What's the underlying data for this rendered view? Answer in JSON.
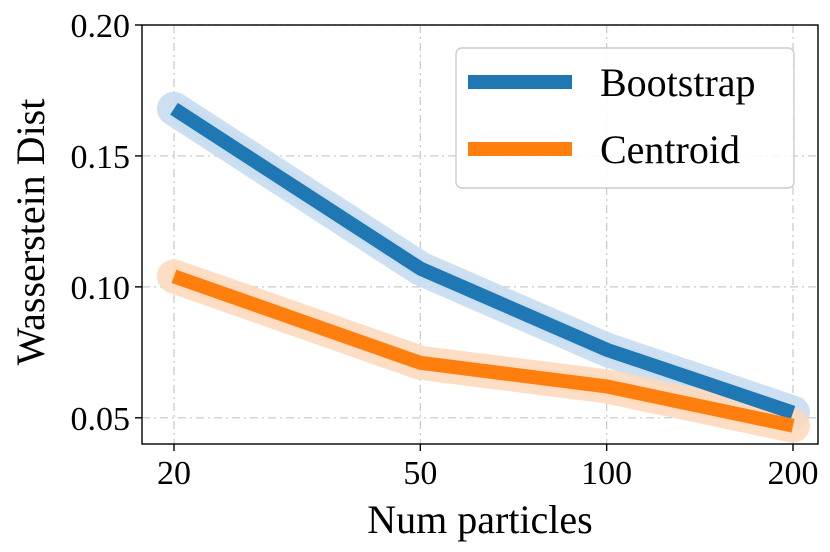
{
  "chart_data": {
    "type": "line",
    "xlabel": "Num particles",
    "ylabel": "Wasserstein Dist",
    "x": [
      20,
      50,
      100,
      200
    ],
    "xticks": [
      20,
      50,
      100,
      200
    ],
    "xtick_labels": [
      "20",
      "50",
      "100",
      "200"
    ],
    "xlim": [
      20,
      200
    ],
    "ylim": [
      0.04,
      0.2
    ],
    "yticks": [
      0.05,
      0.1,
      0.15,
      0.2
    ],
    "ytick_labels": [
      "0.05",
      "0.10",
      "0.15",
      "0.20"
    ],
    "x_scale": "log",
    "grid": true,
    "legend_position": "upper-right",
    "series": [
      {
        "name": "Bootstrap",
        "color": "#1f77b4",
        "band_color": "#c6ddf0",
        "values": [
          0.168,
          0.107,
          0.076,
          0.052
        ],
        "lower": [
          0.162,
          0.103,
          0.072,
          0.049
        ],
        "upper": [
          0.174,
          0.111,
          0.08,
          0.055
        ]
      },
      {
        "name": "Centroid",
        "color": "#ff7f0e",
        "band_color": "#fdd9bd",
        "values": [
          0.104,
          0.071,
          0.062,
          0.047
        ],
        "lower": [
          0.1,
          0.068,
          0.058,
          0.044
        ],
        "upper": [
          0.108,
          0.074,
          0.066,
          0.05
        ]
      }
    ]
  }
}
